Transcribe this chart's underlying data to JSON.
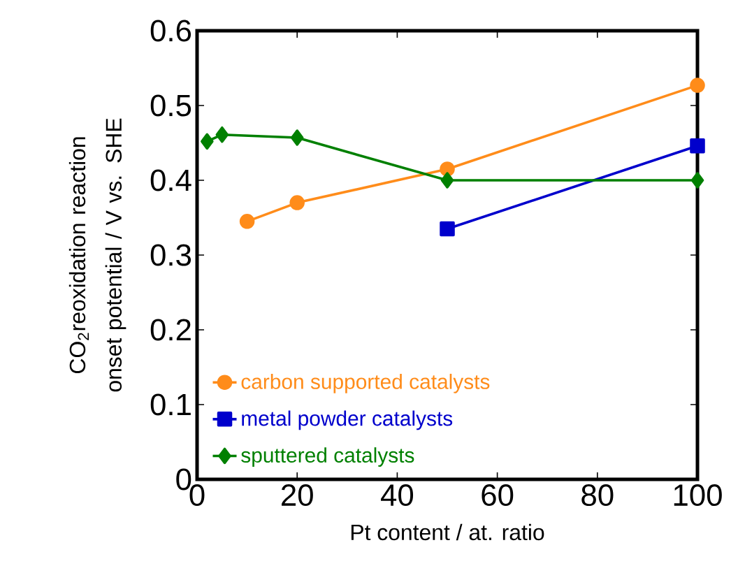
{
  "chart_data": {
    "type": "line",
    "xlabel": "Pt content / at. ratio",
    "ylabel": "CO$_{2}$reoxidation reaction onset potential / V vs. SHE",
    "xlim": [
      0,
      100
    ],
    "ylim": [
      0,
      0.6
    ],
    "xticks": [
      0,
      20,
      40,
      60,
      80,
      100
    ],
    "yticks": [
      0,
      0.1,
      0.2,
      0.3,
      0.4,
      0.5,
      0.6
    ],
    "grid": false,
    "legend": "bottom left",
    "line_style": "solid",
    "series": [
      {
        "name": "carbon supported catalysts",
        "color": "#ff8c1a",
        "marker": "circle",
        "x": [
          10,
          20,
          50,
          100
        ],
        "values": [
          0.345,
          0.37,
          0.415,
          0.527
        ]
      },
      {
        "name": "metal powder catalysts",
        "color": "#0000cc",
        "marker": "square",
        "x": [
          50,
          100
        ],
        "values": [
          0.335,
          0.446
        ]
      },
      {
        "name": "sputtered catalysts",
        "color": "#008000",
        "marker": "diamond",
        "x": [
          2,
          5,
          20,
          50,
          100
        ],
        "values": [
          0.452,
          0.461,
          0.457,
          0.4,
          0.4
        ]
      }
    ]
  }
}
